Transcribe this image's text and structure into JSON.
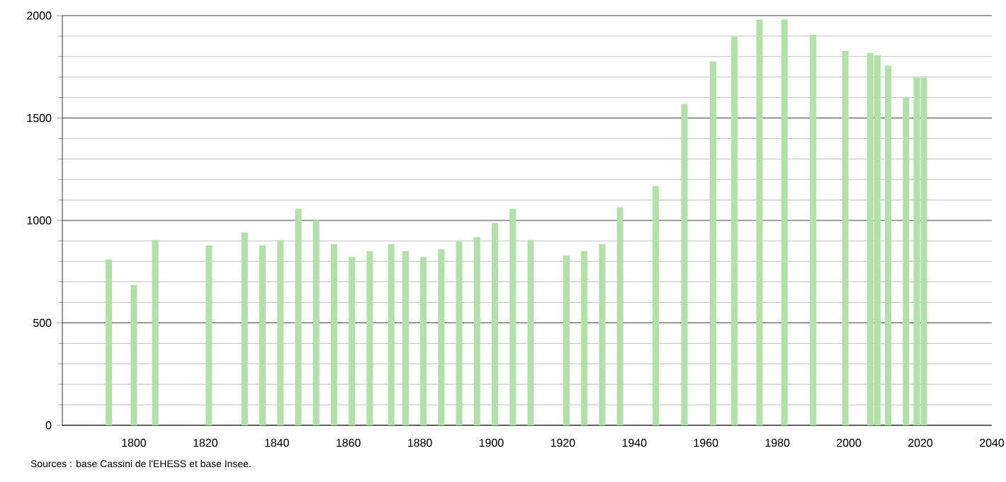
{
  "chart_data": {
    "type": "bar",
    "color": "#b0e2a8",
    "x": [
      1793,
      1800,
      1806,
      1821,
      1831,
      1836,
      1841,
      1846,
      1851,
      1856,
      1861,
      1866,
      1872,
      1876,
      1881,
      1886,
      1891,
      1896,
      1901,
      1906,
      1911,
      1921,
      1926,
      1931,
      1936,
      1946,
      1954,
      1962,
      1968,
      1975,
      1982,
      1990,
      1999,
      2006,
      2008,
      2011,
      2016,
      2019,
      2021
    ],
    "values": [
      810,
      685,
      905,
      878,
      942,
      878,
      903,
      1057,
      1000,
      884,
      822,
      850,
      884,
      850,
      822,
      859,
      898,
      919,
      988,
      1057,
      905,
      829,
      850,
      884,
      1064,
      1168,
      1569,
      1776,
      1896,
      1981,
      1981,
      1907,
      1827,
      1817,
      1806,
      1755,
      1601,
      1698,
      1698
    ],
    "xlim": [
      1780,
      2040
    ],
    "ylim": [
      0,
      2000
    ],
    "xticks": [
      1800,
      1820,
      1840,
      1860,
      1880,
      1900,
      1920,
      1940,
      1960,
      1980,
      2000,
      2020,
      2040
    ],
    "yticks": [
      0,
      500,
      1000,
      1500,
      2000
    ],
    "grid": "y",
    "annotations": [
      "Sources : base Cassini de l'EHESS et base Insee."
    ]
  }
}
